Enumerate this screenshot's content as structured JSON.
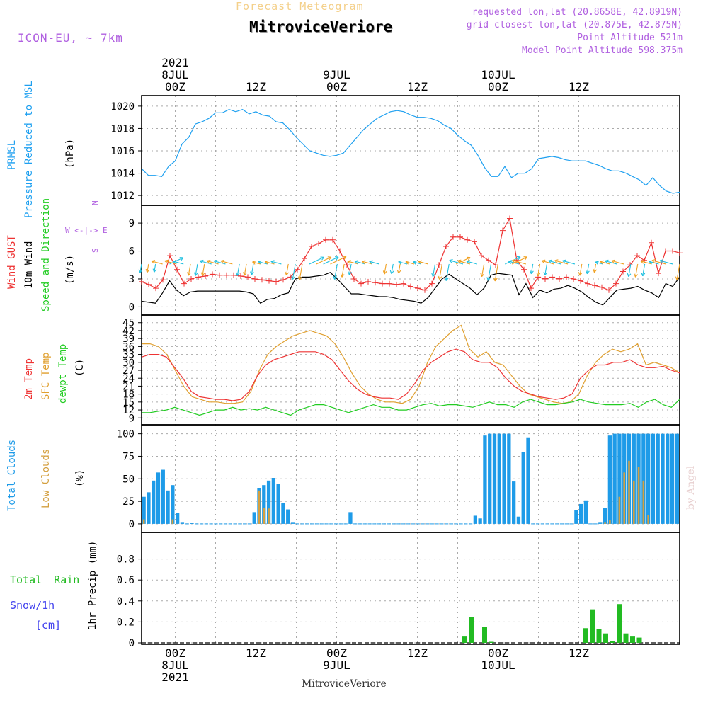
{
  "header": {
    "forecast_title": "Forecast Meteogram",
    "location": "MitroviceVeriore",
    "model": "ICON-EU, ~ 7km",
    "requested": "requested lon,lat (20.8658E, 42.8919N)",
    "closest": "closest lon,lat (20.875E, 42.875N)",
    "closest_prefix": "grid",
    "point_alt": "Point Altitude 521m",
    "model_alt": "Model Point Altitude 598.375m",
    "watermark": "by Angel",
    "bottom_location": "MitroviceVeriore"
  },
  "colors": {
    "pressure": "#1ea0f0",
    "gust": "#ee3333",
    "wind": "#000000",
    "temp": "#ee3333",
    "sfc": "#e0a030",
    "dewpt": "#22cc22",
    "total_clouds": "#1e9be8",
    "low_clouds": "#d4a040",
    "rain": "#22bb22",
    "snow": "#4444ee",
    "meta": "#b060e0"
  },
  "chart_data": {
    "type": "meteogram",
    "time_axis": {
      "start": "2021-07-07T19:00Z",
      "end": "2021-07-10T15:00Z",
      "step_hours": 1,
      "top_labels": [
        {
          "hour": 5,
          "lines": [
            "2021",
            "8JUL",
            "00Z"
          ]
        },
        {
          "hour": 17,
          "lines": [
            "12Z"
          ]
        },
        {
          "hour": 29,
          "lines": [
            "9JUL",
            "00Z"
          ]
        },
        {
          "hour": 41,
          "lines": [
            "12Z"
          ]
        },
        {
          "hour": 53,
          "lines": [
            "10JUL",
            "00Z"
          ]
        },
        {
          "hour": 65,
          "lines": [
            "12Z"
          ]
        }
      ],
      "bottom_labels": [
        {
          "hour": 11,
          "lines": [
            "00Z",
            "8JUL",
            "2021"
          ]
        },
        {
          "hour": 23,
          "lines": [
            "12Z"
          ]
        },
        {
          "hour": 35,
          "lines": [
            "00Z",
            "9JUL"
          ]
        },
        {
          "hour": 47,
          "lines": [
            "12Z"
          ]
        },
        {
          "hour": 59,
          "lines": [
            "00Z",
            "10JUL"
          ]
        },
        {
          "hour": 71,
          "lines": [
            "12Z"
          ]
        }
      ]
    },
    "panels": [
      {
        "id": "pressure",
        "labels": [
          "PRMSL",
          "Pressure Reduced to MSL",
          "(hPa)"
        ],
        "ylim": [
          1011.5,
          1020.5
        ],
        "yticks": [
          1012,
          1014,
          1016,
          1018,
          1020
        ],
        "series": [
          {
            "name": "PRMSL",
            "values": [
              1014.4,
              1013.8,
              1013.8,
              1013.7,
              1014.6,
              1015.1,
              1016.6,
              1017.2,
              1018.4,
              1018.6,
              1018.9,
              1019.4,
              1019.4,
              1019.7,
              1019.5,
              1019.7,
              1019.3,
              1019.5,
              1019.2,
              1019.1,
              1018.6,
              1018.5,
              1017.9,
              1017.2,
              1016.6,
              1016.0,
              1015.8,
              1015.6,
              1015.5,
              1015.6,
              1015.8,
              1016.5,
              1017.2,
              1017.9,
              1018.4,
              1018.9,
              1019.2,
              1019.5,
              1019.6,
              1019.5,
              1019.2,
              1019.0,
              1019.0,
              1018.9,
              1018.7,
              1018.3,
              1018.0,
              1017.4,
              1016.9,
              1016.5,
              1015.6,
              1014.5,
              1013.7,
              1013.7,
              1014.6,
              1013.6,
              1014.0,
              1014.0,
              1014.4,
              1015.3,
              1015.4,
              1015.5,
              1015.4,
              1015.2,
              1015.1,
              1015.1,
              1015.1,
              1014.9,
              1014.7,
              1014.4,
              1014.2,
              1014.2,
              1014.0,
              1013.7,
              1013.4,
              1012.9,
              1013.6,
              1012.9,
              1012.4,
              1012.2,
              1012.3
            ]
          }
        ]
      },
      {
        "id": "wind",
        "labels": [
          "Wind GUST",
          "10m Wind",
          "Speed and Direction",
          "(m/s)"
        ],
        "compass": [
          "N",
          "S",
          "W <-|-> E"
        ],
        "ylim": [
          -0.5,
          10.3
        ],
        "yticks": [
          0,
          3,
          6,
          9
        ],
        "series": [
          {
            "name": "Wind GUST",
            "values": [
              2.7,
              2.4,
              2.0,
              2.9,
              5.5,
              4.0,
              2.5,
              3.0,
              3.2,
              3.3,
              3.5,
              3.4,
              3.4,
              3.4,
              3.3,
              3.2,
              3.0,
              2.9,
              2.8,
              2.7,
              2.9,
              3.2,
              4.0,
              5.2,
              6.5,
              6.8,
              7.2,
              7.2,
              6.0,
              4.5,
              3.0,
              2.5,
              2.7,
              2.6,
              2.5,
              2.5,
              2.4,
              2.5,
              2.2,
              2.0,
              1.8,
              2.5,
              4.5,
              6.5,
              7.5,
              7.5,
              7.2,
              7.0,
              5.5,
              5.0,
              4.5,
              8.2,
              9.5,
              5.0,
              4.0,
              2.0,
              3.2,
              3.0,
              3.2,
              3.0,
              3.2,
              3.0,
              2.8,
              2.5,
              2.3,
              2.1,
              1.8,
              2.5,
              3.8,
              4.5,
              5.5,
              5.0,
              6.9,
              3.6,
              6.0,
              6.0,
              5.8
            ]
          },
          {
            "name": "10m Wind",
            "values": [
              0.6,
              0.5,
              0.4,
              1.5,
              2.8,
              1.8,
              1.2,
              1.6,
              1.7,
              1.7,
              1.7,
              1.7,
              1.7,
              1.7,
              1.7,
              1.6,
              1.4,
              0.4,
              0.8,
              0.9,
              1.3,
              1.5,
              3.0,
              3.2,
              3.2,
              3.3,
              3.4,
              3.7,
              3.0,
              2.2,
              1.4,
              1.4,
              1.3,
              1.2,
              1.1,
              1.1,
              1.0,
              0.8,
              0.7,
              0.6,
              0.4,
              1.0,
              2.0,
              3.0,
              3.5,
              3.0,
              2.5,
              2.0,
              1.3,
              2.0,
              3.4,
              3.6,
              3.5,
              3.4,
              1.3,
              2.5,
              1.0,
              1.8,
              1.5,
              1.9,
              2.0,
              2.3,
              2.0,
              1.6,
              1.0,
              0.5,
              0.2,
              1.0,
              1.8,
              1.9,
              2.0,
              2.2,
              1.8,
              1.5,
              1.0,
              2.5,
              2.2,
              3.2
            ]
          }
        ]
      },
      {
        "id": "temp",
        "labels": [
          "2m Temp",
          "SFC Temp",
          "dewpt Temp",
          "(C)"
        ],
        "ylim": [
          8,
          46
        ],
        "yticks": [
          9,
          12,
          15,
          18,
          21,
          24,
          27,
          30,
          33,
          36,
          39,
          42,
          45
        ],
        "series": [
          {
            "name": "2m Temp",
            "values": [
              32,
              33,
              33,
              32,
              28,
              24,
              19,
              17,
              16.5,
              16,
              16,
              15.5,
              16,
              19,
              25,
              29,
              31,
              32,
              33,
              34,
              34,
              34,
              33,
              31,
              27,
              23,
              20,
              18,
              17,
              16.5,
              16.5,
              16,
              18,
              22,
              27,
              30,
              32,
              34,
              35,
              34,
              31,
              30,
              30,
              28,
              24,
              21,
              19,
              18,
              17,
              16.5,
              16,
              16.5,
              18,
              24,
              27,
              29,
              29,
              30,
              30,
              31,
              29,
              28,
              28,
              28.5,
              27,
              26
            ]
          },
          {
            "name": "SFC Temp",
            "values": [
              37,
              37,
              36,
              33,
              27,
              21,
              17,
              16,
              15,
              15,
              14.5,
              14.5,
              15,
              19,
              27,
              33,
              36,
              38,
              40,
              41,
              42,
              41,
              40,
              37,
              32,
              26,
              21,
              18,
              16,
              15,
              15,
              14.5,
              16,
              21,
              30,
              36,
              39,
              42,
              44,
              35,
              32,
              34,
              30,
              29,
              25,
              21,
              18,
              17,
              16,
              15,
              14.5,
              15,
              18,
              25,
              30,
              33,
              35,
              34,
              35,
              37,
              29,
              30,
              29,
              28,
              26
            ]
          },
          {
            "name": "dewpt Temp",
            "values": [
              11,
              11,
              11.5,
              12,
              13,
              12,
              11,
              10,
              11,
              12,
              12,
              13,
              12,
              12.5,
              12,
              13,
              12,
              11,
              10,
              12,
              13,
              14,
              14,
              13,
              12,
              11,
              12,
              13,
              14,
              13,
              13,
              12,
              12,
              13,
              14,
              14.5,
              13.5,
              14,
              14,
              13.5,
              13,
              14,
              15,
              14,
              14,
              13,
              15,
              16,
              15,
              14,
              14,
              14.5,
              15,
              16,
              15,
              14.5,
              14,
              14,
              14,
              14.5,
              13,
              15,
              16,
              14,
              13,
              16
            ]
          }
        ]
      },
      {
        "id": "clouds",
        "labels": [
          "Total Clouds",
          "Low Clouds",
          "(%)"
        ],
        "ylim": [
          -4,
          106
        ],
        "yticks": [
          0,
          25,
          50,
          75,
          100
        ],
        "series": [
          {
            "name": "Total Clouds",
            "values": [
              30,
              35,
              48,
              57,
              60,
              37,
              43,
              12,
              2,
              0,
              1,
              0,
              0,
              0,
              0,
              0,
              0,
              0,
              0,
              0,
              0,
              0,
              0,
              13,
              40,
              43,
              48,
              51,
              44,
              23,
              16,
              2,
              0,
              0,
              0,
              0,
              0,
              0,
              0,
              0,
              0,
              0,
              0,
              13,
              0,
              0,
              0,
              0,
              0,
              0,
              0,
              0,
              0,
              0,
              0,
              0,
              0,
              0,
              0,
              0,
              0,
              0,
              0,
              0,
              0,
              0,
              0,
              0,
              0,
              9,
              6,
              98,
              100,
              100,
              100,
              100,
              100,
              47,
              8,
              80,
              96,
              0,
              0,
              0,
              0,
              0,
              0,
              0,
              0,
              0,
              15,
              22,
              26,
              0,
              0,
              2,
              18,
              98,
              100,
              100,
              100,
              100,
              100,
              100,
              100,
              100,
              100,
              100,
              100,
              100,
              100,
              100
            ]
          },
          {
            "name": "Low Clouds",
            "values": [
              5,
              0,
              0,
              0,
              0,
              0,
              5,
              0,
              0,
              0,
              0,
              0,
              0,
              0,
              0,
              0,
              0,
              0,
              0,
              0,
              0,
              0,
              0,
              0,
              37,
              18,
              17,
              0,
              0,
              0,
              0,
              0,
              0,
              0,
              0,
              0,
              0,
              0,
              0,
              0,
              0,
              0,
              0,
              0,
              0,
              0,
              0,
              0,
              0,
              0,
              0,
              0,
              0,
              0,
              0,
              0,
              0,
              0,
              0,
              0,
              0,
              0,
              0,
              0,
              0,
              0,
              0,
              0,
              0,
              0,
              0,
              0,
              0,
              0,
              0,
              0,
              0,
              0,
              0,
              0,
              0,
              0,
              0,
              0,
              0,
              0,
              0,
              0,
              0,
              0,
              0,
              0,
              0,
              0,
              0,
              0,
              2,
              4,
              0,
              30,
              57,
              70,
              48,
              63,
              48,
              10,
              0,
              0,
              0,
              0,
              0,
              0,
              0
            ]
          }
        ]
      },
      {
        "id": "precip",
        "labels": [
          "Total Rain",
          "Snow/1h",
          "[cm]",
          "1hr Precip (mm)"
        ],
        "ylim": [
          0,
          1.0
        ],
        "yticks": [
          0,
          0.2,
          0.4,
          0.6,
          0.8
        ],
        "series": [
          {
            "name": "Total Rain",
            "bars": [
              {
                "hour": 48,
                "value": 0.06
              },
              {
                "hour": 49,
                "value": 0.25
              },
              {
                "hour": 51,
                "value": 0.15
              },
              {
                "hour": 52,
                "value": 0.01
              },
              {
                "hour": 66,
                "value": 0.14
              },
              {
                "hour": 67,
                "value": 0.32
              },
              {
                "hour": 68,
                "value": 0.13
              },
              {
                "hour": 69,
                "value": 0.09
              },
              {
                "hour": 70,
                "value": 0.02
              },
              {
                "hour": 71,
                "value": 0.37
              },
              {
                "hour": 72,
                "value": 0.09
              },
              {
                "hour": 73,
                "value": 0.06
              },
              {
                "hour": 74,
                "value": 0.05
              }
            ]
          }
        ]
      }
    ]
  }
}
